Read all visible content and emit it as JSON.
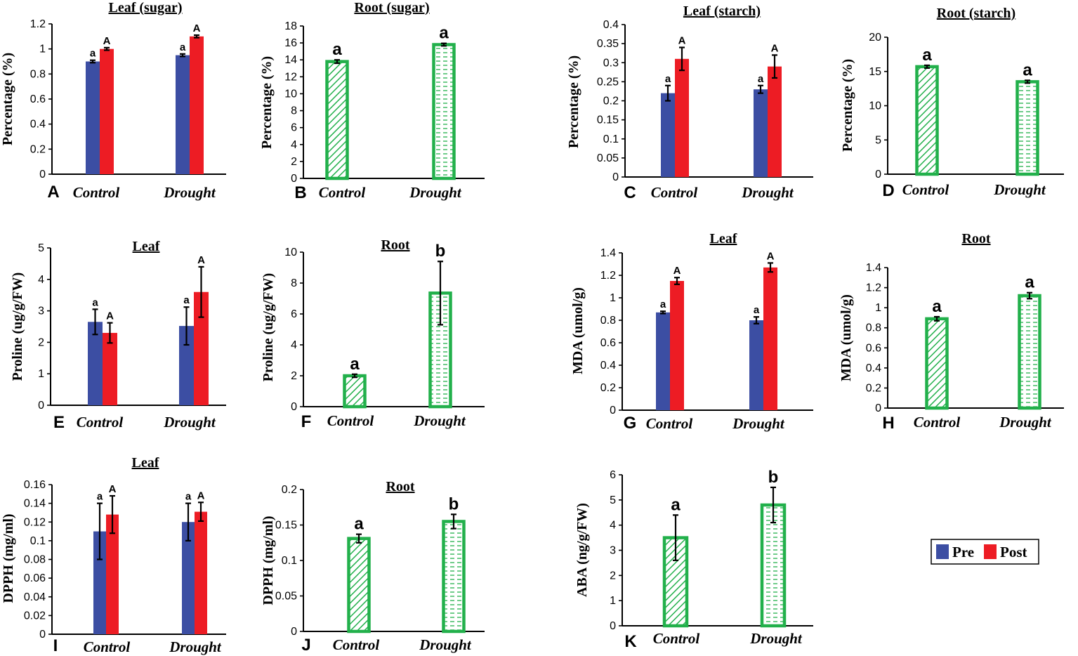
{
  "colors": {
    "pre": "#3c4ea3",
    "post": "#ed1c24",
    "green": "#22b04b",
    "axis": "#000000"
  },
  "legend": {
    "items": [
      {
        "name": "Pre",
        "color": "#3c4ea3"
      },
      {
        "name": "Post",
        "color": "#ed1c24"
      }
    ]
  },
  "chart_data": [
    {
      "id": "A",
      "type": "bar",
      "title": "Leaf (sugar)",
      "ylabel": "Percentage (%)",
      "categories": [
        "Control",
        "Drought"
      ],
      "ylim": [
        0,
        1.2
      ],
      "ticks": [
        "0",
        "0.2",
        "0.4",
        "0.6",
        "0.8",
        "1",
        "1.2"
      ],
      "series": [
        {
          "name": "Pre",
          "values": [
            0.9,
            0.95
          ],
          "errors": [
            0.01,
            0.01
          ],
          "sig": [
            "a",
            "a"
          ]
        },
        {
          "name": "Post",
          "values": [
            1.0,
            1.1
          ],
          "errors": [
            0.01,
            0.01
          ],
          "sig": [
            "A",
            "A"
          ]
        }
      ]
    },
    {
      "id": "B",
      "type": "bar",
      "title": "Root (sugar)",
      "ylabel": "Percentage (%)",
      "categories": [
        "Control",
        "Drought"
      ],
      "ylim": [
        0,
        18
      ],
      "ticks": [
        "0",
        "2",
        "4",
        "6",
        "8",
        "10",
        "12",
        "14",
        "16",
        "18"
      ],
      "values": [
        13.8,
        15.8
      ],
      "errors": [
        0.2,
        0.15
      ],
      "sig": [
        "a",
        "a"
      ],
      "patterns": [
        "diagonal",
        "dashed"
      ]
    },
    {
      "id": "C",
      "type": "bar",
      "title": "Leaf (starch)",
      "ylabel": "Percentage (%)",
      "categories": [
        "Control",
        "Drought"
      ],
      "ylim": [
        0,
        0.4
      ],
      "ticks": [
        "0",
        "0.05",
        "0.1",
        "0.15",
        "0.2",
        "0.25",
        "0.3",
        "0.35",
        "0.4"
      ],
      "series": [
        {
          "name": "Pre",
          "values": [
            0.22,
            0.23
          ],
          "errors": [
            0.02,
            0.01
          ],
          "sig": [
            "a",
            "a"
          ]
        },
        {
          "name": "Post",
          "values": [
            0.31,
            0.29
          ],
          "errors": [
            0.03,
            0.03
          ],
          "sig": [
            "A",
            "A"
          ]
        }
      ]
    },
    {
      "id": "D",
      "type": "bar",
      "title": "Root (starch)",
      "ylabel": "Percentage (%)",
      "categories": [
        "Control",
        "Drought"
      ],
      "ylim": [
        0,
        20
      ],
      "ticks": [
        "0",
        "5",
        "10",
        "15",
        "20"
      ],
      "values": [
        15.7,
        13.5
      ],
      "errors": [
        0.2,
        0.2
      ],
      "sig": [
        "a",
        "a"
      ],
      "patterns": [
        "diagonal",
        "dashed"
      ]
    },
    {
      "id": "E",
      "type": "bar",
      "title": "Leaf",
      "ylabel": "Proline (ug/g/FW)",
      "categories": [
        "Control",
        "Drought"
      ],
      "ylim": [
        0,
        5
      ],
      "ticks": [
        "0",
        "1",
        "2",
        "3",
        "4",
        "5"
      ],
      "series": [
        {
          "name": "Pre",
          "values": [
            2.65,
            2.52
          ],
          "errors": [
            0.4,
            0.6
          ],
          "sig": [
            "a",
            "a"
          ]
        },
        {
          "name": "Post",
          "values": [
            2.3,
            3.6
          ],
          "errors": [
            0.32,
            0.8
          ],
          "sig": [
            "A",
            "A"
          ]
        }
      ]
    },
    {
      "id": "F",
      "type": "bar",
      "title": "Root",
      "ylabel": "Proline (ug/g/FW)",
      "categories": [
        "Control",
        "Drought"
      ],
      "ylim": [
        0,
        10
      ],
      "ticks": [
        "0",
        "2",
        "4",
        "6",
        "8",
        "10"
      ],
      "values": [
        2.0,
        7.35
      ],
      "errors": [
        0.1,
        2.05
      ],
      "sig": [
        "a",
        "b"
      ],
      "patterns": [
        "diagonal",
        "dashed"
      ]
    },
    {
      "id": "G",
      "type": "bar",
      "title": "Leaf",
      "ylabel": "MDA (umol/g)",
      "categories": [
        "Control",
        "Drought"
      ],
      "ylim": [
        0,
        1.4
      ],
      "ticks": [
        "0",
        "0.2",
        "0.4",
        "0.6",
        "0.8",
        "1",
        "1.2",
        "1.4"
      ],
      "series": [
        {
          "name": "Pre",
          "values": [
            0.87,
            0.8
          ],
          "errors": [
            0.01,
            0.03
          ],
          "sig": [
            "a",
            "a"
          ]
        },
        {
          "name": "Post",
          "values": [
            1.15,
            1.27
          ],
          "errors": [
            0.03,
            0.04
          ],
          "sig": [
            "A",
            "A"
          ]
        }
      ]
    },
    {
      "id": "H",
      "type": "bar",
      "title": "Root",
      "ylabel": "MDA (umol/g)",
      "categories": [
        "Control",
        "Drought"
      ],
      "ylim": [
        0,
        1.4
      ],
      "ticks": [
        "0",
        "0.2",
        "0.4",
        "0.6",
        "0.8",
        "1",
        "1.2",
        "1.4"
      ],
      "values": [
        0.89,
        1.12
      ],
      "errors": [
        0.02,
        0.03
      ],
      "sig": [
        "a",
        "a"
      ],
      "patterns": [
        "diagonal",
        "dashed"
      ]
    },
    {
      "id": "I",
      "type": "bar",
      "title": "Leaf",
      "ylabel": "DPPH (mg/ml)",
      "categories": [
        "Control",
        "Drought"
      ],
      "ylim": [
        0,
        0.16
      ],
      "ticks": [
        "0",
        "0.02",
        "0.04",
        "0.06",
        "0.08",
        "0.1",
        "0.12",
        "0.14",
        "0.16"
      ],
      "series": [
        {
          "name": "Pre",
          "values": [
            0.11,
            0.12
          ],
          "errors": [
            0.03,
            0.02
          ],
          "sig": [
            "a",
            "a"
          ]
        },
        {
          "name": "Post",
          "values": [
            0.128,
            0.131
          ],
          "errors": [
            0.02,
            0.01
          ],
          "sig": [
            "A",
            "A"
          ]
        }
      ]
    },
    {
      "id": "J",
      "type": "bar",
      "title": "Root",
      "ylabel": "DPPH (mg/ml)",
      "categories": [
        "Control",
        "Drought"
      ],
      "ylim": [
        0,
        0.2
      ],
      "ticks": [
        "0",
        "0.05",
        "0.1",
        "0.15",
        "0.2"
      ],
      "values": [
        0.131,
        0.155
      ],
      "errors": [
        0.006,
        0.01
      ],
      "sig": [
        "a",
        "b"
      ],
      "patterns": [
        "diagonal",
        "dashed"
      ]
    },
    {
      "id": "K",
      "type": "bar",
      "title": "",
      "ylabel": "ABA (ng/g/FW)",
      "categories": [
        "Control",
        "Drought"
      ],
      "ylim": [
        0,
        6
      ],
      "ticks": [
        "0",
        "1",
        "2",
        "3",
        "4",
        "5",
        "6"
      ],
      "values": [
        3.5,
        4.8
      ],
      "errors": [
        0.9,
        0.7
      ],
      "sig": [
        "a",
        "b"
      ],
      "patterns": [
        "diagonal",
        "dashed"
      ]
    }
  ]
}
